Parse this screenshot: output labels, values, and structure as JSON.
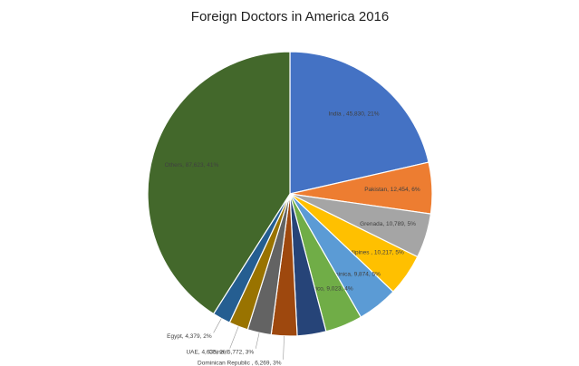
{
  "chart_data": {
    "type": "pie",
    "title": "Foreign Doctors in America 2016",
    "values": [
      45830,
      12454,
      10789,
      10217,
      9874,
      9023,
      7000,
      6269,
      5772,
      4635,
      4379,
      87623
    ],
    "value_labels": [
      "India , 45,830, 21%",
      "Pakistan, 12,454, 6%",
      "Grenada, 10,789, 5%",
      "Philipines , 10,217, 5%",
      "Dominica, 9,874, 5%",
      "Mexico, 9,023, 4%",
      null,
      "Dominican Republic , 6,269, 3%",
      "China, 5,772, 3%",
      "UAE, 4,635, 2%",
      "Egypt, 4,379, 2%",
      "Others, 87,623, 41%"
    ],
    "colors": [
      "#4472c4",
      "#ed7d31",
      "#a5a5a5",
      "#ffc000",
      "#5b9bd5",
      "#70ad47",
      "#264478",
      "#9e480e",
      "#636363",
      "#997300",
      "#255e91",
      "#43682b"
    ]
  }
}
